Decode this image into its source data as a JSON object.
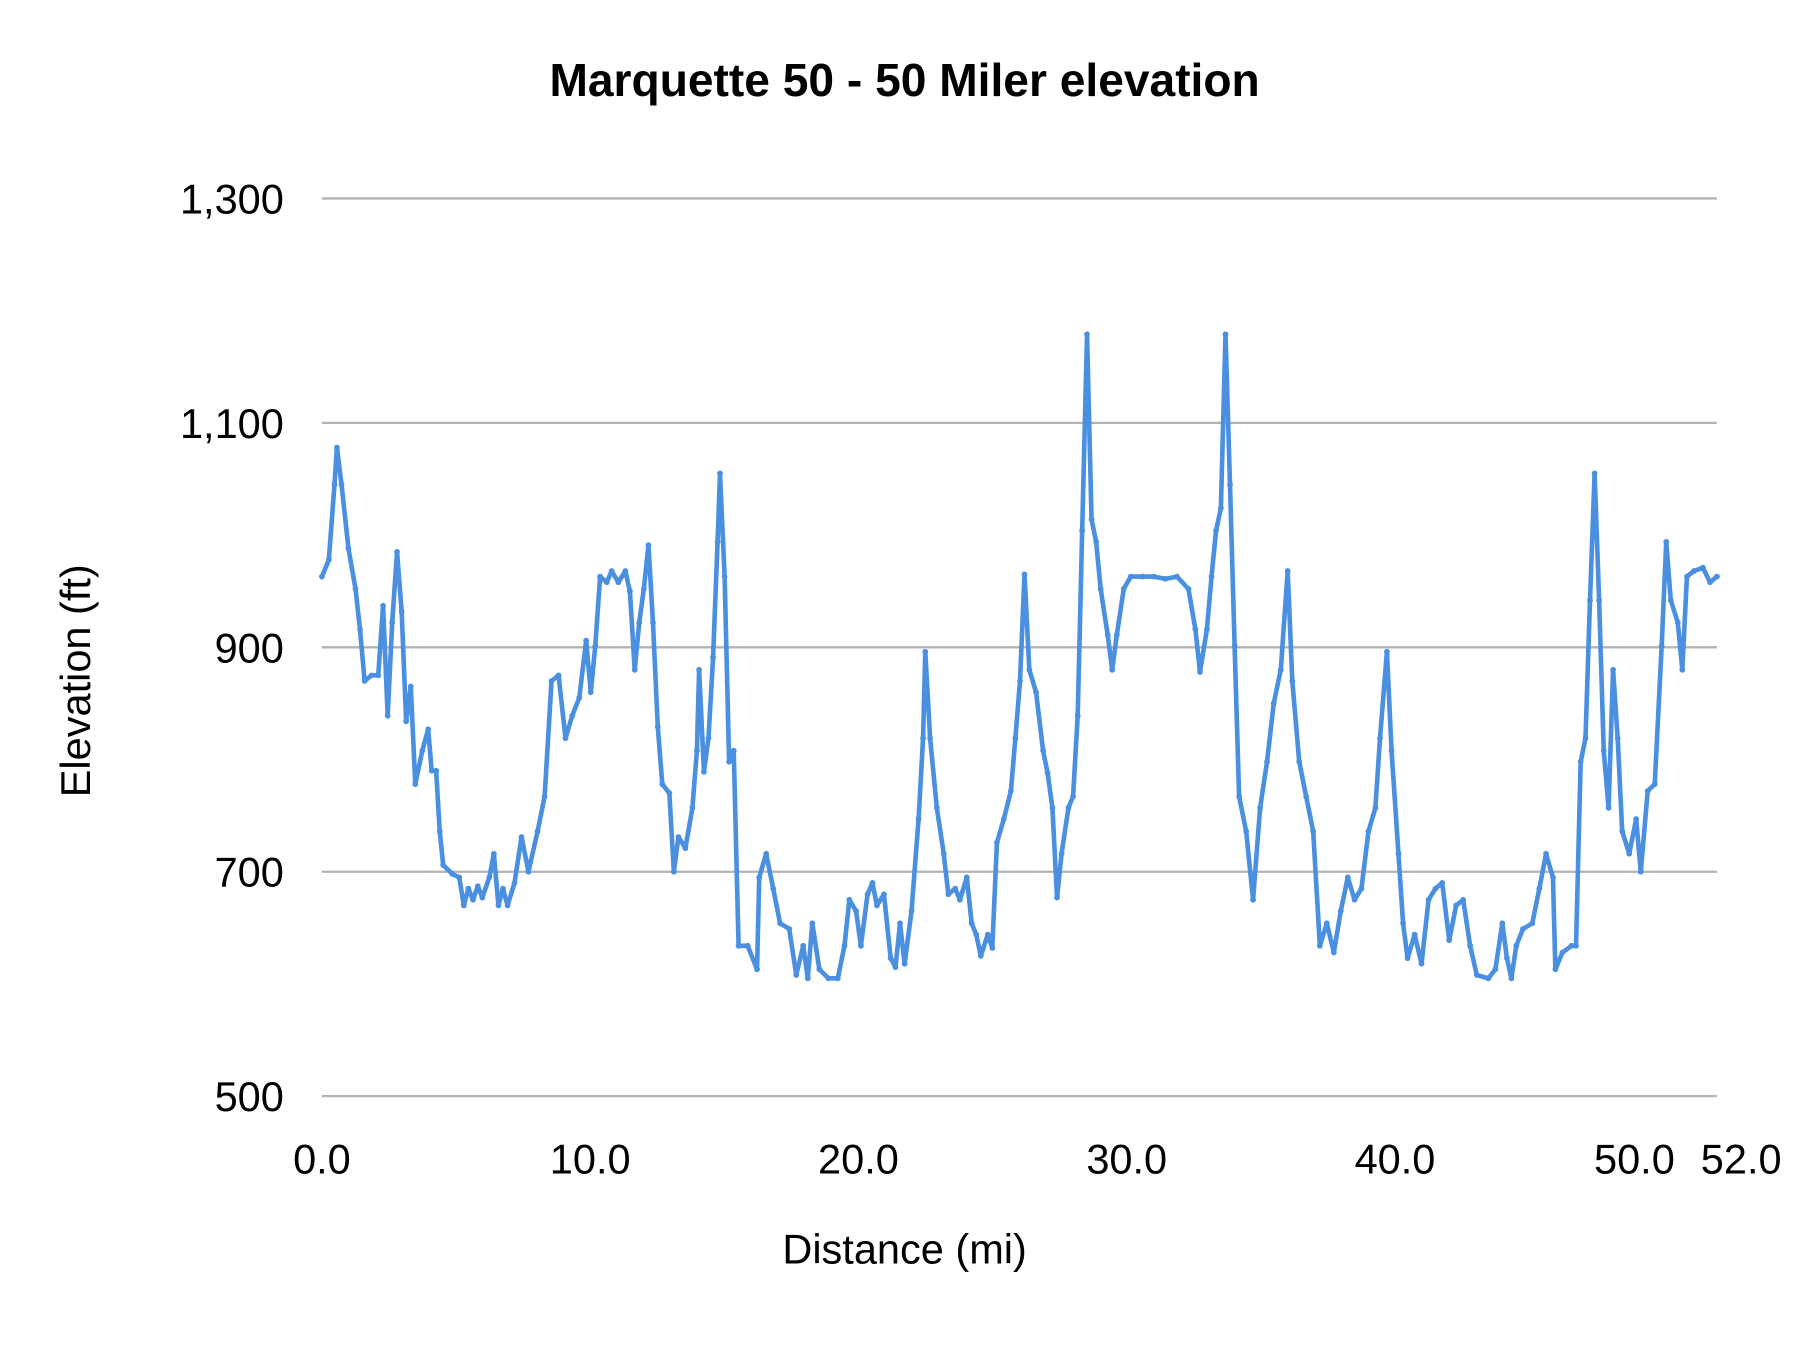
{
  "chart_data": {
    "type": "line",
    "title": "Marquette 50 - 50 Miler elevation",
    "xlabel": "Distance (mi)",
    "ylabel": "Elevation (ft)",
    "xlim": [
      0,
      52
    ],
    "ylim": [
      500,
      1300
    ],
    "x_ticks": [
      0,
      10,
      20,
      30,
      40,
      50,
      52
    ],
    "x_tick_labels": [
      "0.0",
      "10.0",
      "20.0",
      "30.0",
      "40.0",
      "50.0",
      "52.0"
    ],
    "y_ticks": [
      500,
      700,
      900,
      1100,
      1300
    ],
    "y_tick_labels": [
      "500",
      "700",
      "900",
      "1,100",
      "1,300"
    ],
    "grid": "horizontal",
    "legend": "none",
    "colors": {
      "line": "#4a8fe0",
      "grid": "#b3b3b3"
    },
    "series": [
      {
        "points": [
          [
            0,
            963
          ],
          [
            0.26,
            978
          ],
          [
            0.47,
            1045
          ],
          [
            0.56,
            1078
          ],
          [
            0.73,
            1045
          ],
          [
            0.99,
            988
          ],
          [
            1.25,
            952
          ],
          [
            1.42,
            916
          ],
          [
            1.59,
            870
          ],
          [
            1.85,
            875
          ],
          [
            2.1,
            875
          ],
          [
            2.28,
            937
          ],
          [
            2.45,
            839
          ],
          [
            2.62,
            922
          ],
          [
            2.8,
            985
          ],
          [
            2.97,
            932
          ],
          [
            3.14,
            834
          ],
          [
            3.31,
            865
          ],
          [
            3.48,
            778
          ],
          [
            3.74,
            808
          ],
          [
            3.96,
            827
          ],
          [
            4.09,
            790
          ],
          [
            4.26,
            790
          ],
          [
            4.39,
            736
          ],
          [
            4.52,
            706
          ],
          [
            4.86,
            698
          ],
          [
            5.12,
            695
          ],
          [
            5.29,
            670
          ],
          [
            5.46,
            685
          ],
          [
            5.63,
            675
          ],
          [
            5.81,
            687
          ],
          [
            5.98,
            677
          ],
          [
            6.24,
            695
          ],
          [
            6.41,
            716
          ],
          [
            6.58,
            670
          ],
          [
            6.75,
            685
          ],
          [
            6.92,
            670
          ],
          [
            7.18,
            690
          ],
          [
            7.44,
            731
          ],
          [
            7.7,
            700
          ],
          [
            8.04,
            736
          ],
          [
            8.3,
            767
          ],
          [
            8.56,
            870
          ],
          [
            8.82,
            875
          ],
          [
            9.08,
            819
          ],
          [
            9.33,
            839
          ],
          [
            9.59,
            855
          ],
          [
            9.85,
            906
          ],
          [
            10.02,
            860
          ],
          [
            10.19,
            901
          ],
          [
            10.37,
            963
          ],
          [
            10.62,
            958
          ],
          [
            10.8,
            968
          ],
          [
            11.05,
            958
          ],
          [
            11.31,
            968
          ],
          [
            11.48,
            950
          ],
          [
            11.66,
            880
          ],
          [
            11.83,
            922
          ],
          [
            12.0,
            952
          ],
          [
            12.17,
            991
          ],
          [
            12.34,
            922
          ],
          [
            12.52,
            829
          ],
          [
            12.69,
            778
          ],
          [
            12.95,
            770
          ],
          [
            13.12,
            700
          ],
          [
            13.29,
            731
          ],
          [
            13.55,
            721
          ],
          [
            13.81,
            757
          ],
          [
            13.98,
            808
          ],
          [
            14.06,
            880
          ],
          [
            14.24,
            789
          ],
          [
            14.41,
            819
          ],
          [
            14.58,
            891
          ],
          [
            14.75,
            994
          ],
          [
            14.84,
            1055
          ],
          [
            15.01,
            963
          ],
          [
            15.18,
            798
          ],
          [
            15.35,
            808
          ],
          [
            15.53,
            634
          ],
          [
            15.87,
            634
          ],
          [
            16.22,
            613
          ],
          [
            16.3,
            695
          ],
          [
            16.56,
            716
          ],
          [
            16.82,
            685
          ],
          [
            17.08,
            654
          ],
          [
            17.42,
            649
          ],
          [
            17.68,
            608
          ],
          [
            17.94,
            634
          ],
          [
            18.11,
            605
          ],
          [
            18.28,
            654
          ],
          [
            18.54,
            613
          ],
          [
            18.88,
            605
          ],
          [
            19.23,
            605
          ],
          [
            19.48,
            634
          ],
          [
            19.66,
            675
          ],
          [
            19.91,
            665
          ],
          [
            20.09,
            634
          ],
          [
            20.34,
            680
          ],
          [
            20.52,
            690
          ],
          [
            20.69,
            670
          ],
          [
            20.95,
            680
          ],
          [
            21.2,
            623
          ],
          [
            21.38,
            615
          ],
          [
            21.55,
            654
          ],
          [
            21.72,
            618
          ],
          [
            21.98,
            665
          ],
          [
            22.24,
            747
          ],
          [
            22.41,
            819
          ],
          [
            22.49,
            896
          ],
          [
            22.67,
            819
          ],
          [
            22.92,
            757
          ],
          [
            23.18,
            716
          ],
          [
            23.35,
            680
          ],
          [
            23.61,
            685
          ],
          [
            23.78,
            675
          ],
          [
            24.04,
            695
          ],
          [
            24.22,
            654
          ],
          [
            24.39,
            644
          ],
          [
            24.56,
            625
          ],
          [
            24.82,
            644
          ],
          [
            24.99,
            632
          ],
          [
            25.16,
            726
          ],
          [
            25.42,
            747
          ],
          [
            25.68,
            772
          ],
          [
            25.85,
            819
          ],
          [
            26.02,
            870
          ],
          [
            26.19,
            965
          ],
          [
            26.37,
            880
          ],
          [
            26.62,
            860
          ],
          [
            26.88,
            808
          ],
          [
            27.05,
            788
          ],
          [
            27.23,
            757
          ],
          [
            27.4,
            677
          ],
          [
            27.57,
            716
          ],
          [
            27.83,
            757
          ],
          [
            28.0,
            767
          ],
          [
            28.17,
            839
          ],
          [
            28.34,
            1004
          ],
          [
            28.52,
            1179
          ],
          [
            28.69,
            1014
          ],
          [
            28.86,
            994
          ],
          [
            29.03,
            952
          ],
          [
            29.29,
            911
          ],
          [
            29.46,
            880
          ],
          [
            29.63,
            911
          ],
          [
            29.89,
            952
          ],
          [
            30.15,
            963
          ],
          [
            30.58,
            963
          ],
          [
            31.01,
            963
          ],
          [
            31.44,
            961
          ],
          [
            31.87,
            963
          ],
          [
            32.3,
            952
          ],
          [
            32.56,
            916
          ],
          [
            32.73,
            878
          ],
          [
            32.99,
            916
          ],
          [
            33.16,
            963
          ],
          [
            33.33,
            1004
          ],
          [
            33.51,
            1024
          ],
          [
            33.68,
            1179
          ],
          [
            33.85,
            1045
          ],
          [
            34.02,
            901
          ],
          [
            34.19,
            767
          ],
          [
            34.45,
            736
          ],
          [
            34.71,
            675
          ],
          [
            34.97,
            757
          ],
          [
            35.23,
            798
          ],
          [
            35.48,
            850
          ],
          [
            35.74,
            880
          ],
          [
            36.0,
            968
          ],
          [
            36.17,
            870
          ],
          [
            36.43,
            798
          ],
          [
            36.69,
            767
          ],
          [
            36.95,
            736
          ],
          [
            37.2,
            634
          ],
          [
            37.46,
            654
          ],
          [
            37.72,
            628
          ],
          [
            37.98,
            665
          ],
          [
            38.24,
            695
          ],
          [
            38.49,
            675
          ],
          [
            38.75,
            685
          ],
          [
            39.01,
            736
          ],
          [
            39.27,
            757
          ],
          [
            39.44,
            819
          ],
          [
            39.7,
            896
          ],
          [
            39.87,
            808
          ],
          [
            40.13,
            716
          ],
          [
            40.3,
            654
          ],
          [
            40.47,
            623
          ],
          [
            40.73,
            644
          ],
          [
            40.99,
            618
          ],
          [
            41.25,
            675
          ],
          [
            41.51,
            685
          ],
          [
            41.76,
            690
          ],
          [
            42.02,
            639
          ],
          [
            42.28,
            670
          ],
          [
            42.54,
            675
          ],
          [
            42.8,
            634
          ],
          [
            43.05,
            608
          ],
          [
            43.48,
            605
          ],
          [
            43.74,
            613
          ],
          [
            44.0,
            654
          ],
          [
            44.17,
            623
          ],
          [
            44.34,
            605
          ],
          [
            44.52,
            634
          ],
          [
            44.77,
            649
          ],
          [
            45.12,
            654
          ],
          [
            45.38,
            685
          ],
          [
            45.63,
            716
          ],
          [
            45.89,
            695
          ],
          [
            45.98,
            613
          ],
          [
            46.24,
            628
          ],
          [
            46.58,
            634
          ],
          [
            46.75,
            634
          ],
          [
            46.92,
            798
          ],
          [
            47.1,
            819
          ],
          [
            47.27,
            942
          ],
          [
            47.44,
            1055
          ],
          [
            47.61,
            942
          ],
          [
            47.78,
            808
          ],
          [
            47.96,
            757
          ],
          [
            48.13,
            880
          ],
          [
            48.3,
            819
          ],
          [
            48.47,
            736
          ],
          [
            48.73,
            716
          ],
          [
            48.99,
            747
          ],
          [
            49.16,
            700
          ],
          [
            49.42,
            772
          ],
          [
            49.68,
            778
          ],
          [
            49.94,
            901
          ],
          [
            50.11,
            994
          ],
          [
            50.28,
            942
          ],
          [
            50.54,
            922
          ],
          [
            50.71,
            880
          ],
          [
            50.88,
            963
          ],
          [
            51.14,
            968
          ],
          [
            51.48,
            971
          ],
          [
            51.74,
            958
          ],
          [
            52.0,
            963
          ]
        ]
      }
    ]
  }
}
